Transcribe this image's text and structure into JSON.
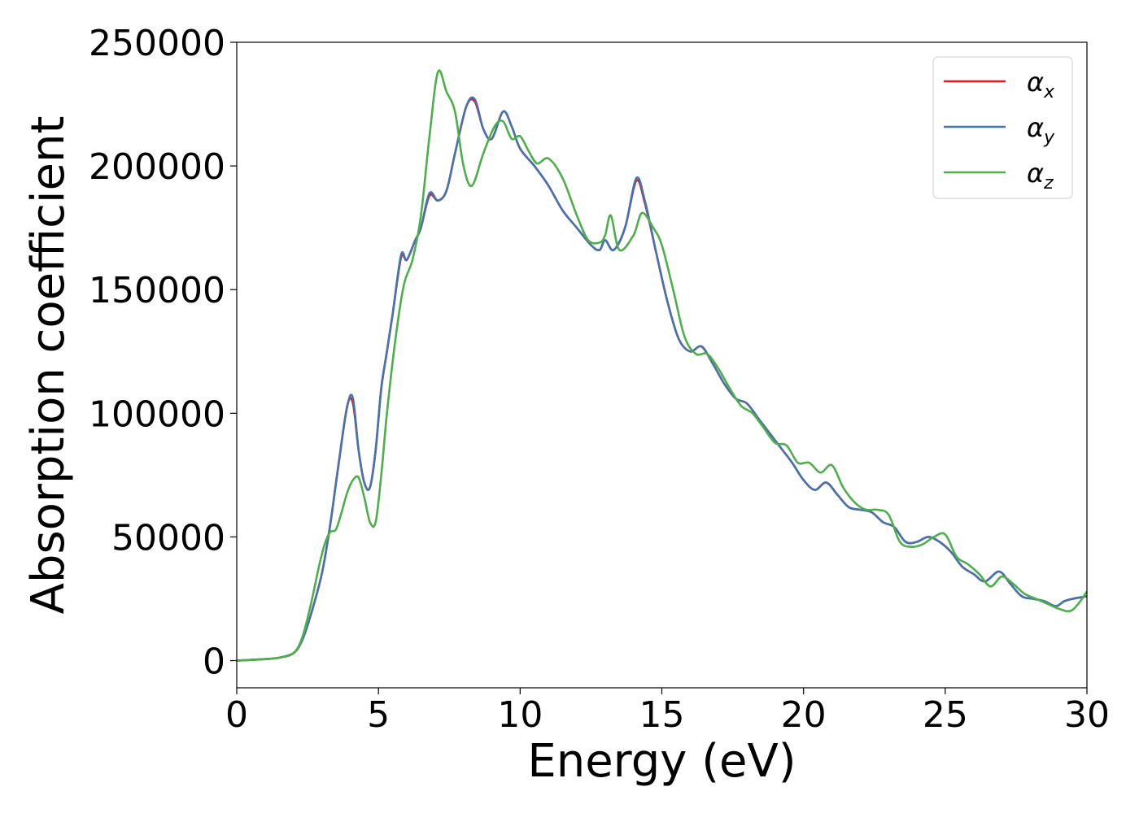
{
  "chart_data": {
    "type": "line",
    "xlabel": "Energy (eV)",
    "ylabel": "Absorption coefficient",
    "xlim": [
      0,
      30
    ],
    "ylim": [
      -11000,
      250000
    ],
    "xticks": [
      0,
      5,
      10,
      15,
      20,
      25,
      30
    ],
    "xtick_labels": [
      "0",
      "5",
      "10",
      "15",
      "20",
      "25",
      "30"
    ],
    "yticks": [
      0,
      50000,
      100000,
      150000,
      200000,
      250000
    ],
    "ytick_labels": [
      "0",
      "50000",
      "100000",
      "150000",
      "200000",
      "250000"
    ],
    "grid": false,
    "legend_position": "top-right",
    "series": [
      {
        "name": "α",
        "subscript": "x",
        "color": "#e41a1c",
        "x": [
          0,
          1,
          1.5,
          2,
          2.3,
          2.6,
          3,
          3.3,
          3.6,
          3.9,
          4.1,
          4.3,
          4.5,
          4.7,
          4.9,
          5.1,
          5.3,
          5.5,
          5.8,
          6,
          6.3,
          6.5,
          6.8,
          7.1,
          7.4,
          7.7,
          8.1,
          8.4,
          8.7,
          9,
          9.4,
          9.7,
          10,
          10.5,
          11,
          11.5,
          12,
          12.5,
          12.8,
          13,
          13.3,
          13.7,
          14.1,
          14.4,
          14.8,
          15.2,
          15.6,
          16,
          16.4,
          16.8,
          17.2,
          17.6,
          18,
          18.4,
          18.8,
          19.2,
          19.6,
          20,
          20.4,
          20.8,
          21.2,
          21.6,
          22,
          22.4,
          22.8,
          23.2,
          23.6,
          24,
          24.4,
          24.8,
          25.2,
          25.6,
          26,
          26.4,
          26.9,
          27.3,
          27.7,
          28.1,
          28.5,
          28.9,
          29.2,
          29.5,
          30
        ],
        "y": [
          0,
          600,
          1200,
          3000,
          8000,
          18000,
          35000,
          55000,
          80000,
          103000,
          104000,
          85000,
          72000,
          70000,
          85000,
          110000,
          125000,
          140000,
          163000,
          162000,
          170000,
          175000,
          188000,
          186000,
          190000,
          205000,
          224000,
          226000,
          215000,
          211000,
          222000,
          216000,
          207000,
          200000,
          192000,
          182000,
          175000,
          168000,
          166000,
          170000,
          166000,
          175000,
          194000,
          185000,
          165000,
          145000,
          130000,
          125000,
          127000,
          120000,
          112000,
          106000,
          104000,
          98000,
          92000,
          86000,
          80000,
          73000,
          69000,
          72000,
          67000,
          62000,
          61000,
          60000,
          56000,
          54000,
          48000,
          48000,
          50000,
          48000,
          44000,
          38000,
          35000,
          32000,
          36000,
          31000,
          26000,
          25000,
          24000,
          22000,
          24000,
          25000,
          26000
        ]
      },
      {
        "name": "α",
        "subscript": "y",
        "color": "#4474b0",
        "x": [
          0,
          1,
          1.5,
          2,
          2.3,
          2.6,
          3,
          3.3,
          3.6,
          3.9,
          4.1,
          4.3,
          4.5,
          4.7,
          4.9,
          5.1,
          5.3,
          5.5,
          5.8,
          6,
          6.3,
          6.5,
          6.8,
          7.1,
          7.4,
          7.7,
          8.1,
          8.4,
          8.7,
          9,
          9.4,
          9.7,
          10,
          10.5,
          11,
          11.5,
          12,
          12.5,
          12.8,
          13,
          13.3,
          13.7,
          14.1,
          14.4,
          14.8,
          15.2,
          15.6,
          16,
          16.4,
          16.8,
          17.2,
          17.6,
          18,
          18.4,
          18.8,
          19.2,
          19.6,
          20,
          20.4,
          20.8,
          21.2,
          21.6,
          22,
          22.4,
          22.8,
          23.2,
          23.6,
          24,
          24.4,
          24.8,
          25.2,
          25.6,
          26,
          26.4,
          26.9,
          27.3,
          27.7,
          28.1,
          28.5,
          28.9,
          29.2,
          29.5,
          30
        ],
        "y": [
          0,
          600,
          1200,
          3000,
          8000,
          18000,
          35000,
          55000,
          80000,
          103000,
          106000,
          85000,
          72000,
          70000,
          85000,
          110000,
          125000,
          140000,
          164000,
          162000,
          170000,
          175000,
          189000,
          186000,
          190000,
          205000,
          224000,
          227000,
          215000,
          211000,
          222000,
          216000,
          207000,
          200000,
          192000,
          182000,
          175000,
          168000,
          166000,
          170000,
          166000,
          175000,
          195000,
          186000,
          165000,
          145000,
          130000,
          125000,
          127000,
          120000,
          112000,
          106000,
          104000,
          98000,
          92000,
          86000,
          80000,
          73000,
          69000,
          72000,
          67000,
          62000,
          61000,
          60000,
          56000,
          54000,
          48000,
          48000,
          50000,
          48000,
          44000,
          38000,
          35000,
          32000,
          36000,
          31000,
          26000,
          25000,
          24000,
          22000,
          24000,
          25000,
          26000
        ]
      },
      {
        "name": "α",
        "subscript": "z",
        "color": "#4daf4a",
        "x": [
          0,
          1,
          1.5,
          2,
          2.3,
          2.6,
          2.9,
          3.1,
          3.3,
          3.5,
          3.7,
          3.9,
          4.1,
          4.3,
          4.5,
          4.7,
          4.9,
          5.1,
          5.3,
          5.6,
          5.9,
          6.2,
          6.5,
          6.8,
          7.1,
          7.4,
          7.7,
          8,
          8.3,
          8.7,
          9.1,
          9.4,
          9.7,
          10,
          10.3,
          10.6,
          11,
          11.5,
          12,
          12.4,
          12.8,
          13,
          13.2,
          13.5,
          14,
          14.3,
          14.7,
          15,
          15.4,
          15.8,
          16.2,
          16.6,
          17,
          17.4,
          17.8,
          18.2,
          18.6,
          19,
          19.4,
          19.8,
          20.2,
          20.6,
          21,
          21.4,
          21.8,
          22.2,
          22.6,
          23,
          23.4,
          23.8,
          24.2,
          24.6,
          25,
          25.4,
          25.8,
          26.2,
          26.6,
          27,
          27.4,
          27.8,
          28.2,
          28.6,
          29,
          29.4,
          29.7,
          30
        ],
        "y": [
          0,
          600,
          1200,
          3000,
          9000,
          22000,
          38000,
          47000,
          52000,
          53000,
          60000,
          68000,
          73000,
          74000,
          66000,
          56000,
          56000,
          75000,
          100000,
          130000,
          152000,
          162000,
          180000,
          212000,
          238000,
          230000,
          222000,
          200000,
          192000,
          205000,
          216000,
          218000,
          211000,
          212000,
          206000,
          201000,
          203000,
          195000,
          180000,
          170000,
          169000,
          172000,
          180000,
          166000,
          172000,
          181000,
          175000,
          168000,
          150000,
          131000,
          124000,
          124000,
          118000,
          110000,
          103000,
          100000,
          94000,
          88000,
          87000,
          80000,
          80000,
          76000,
          79000,
          70000,
          64000,
          61000,
          61000,
          59000,
          48000,
          46000,
          47000,
          50000,
          51000,
          42000,
          39000,
          35000,
          30000,
          34000,
          31000,
          27000,
          25000,
          23000,
          21000,
          20000,
          23000,
          28000
        ]
      }
    ]
  }
}
